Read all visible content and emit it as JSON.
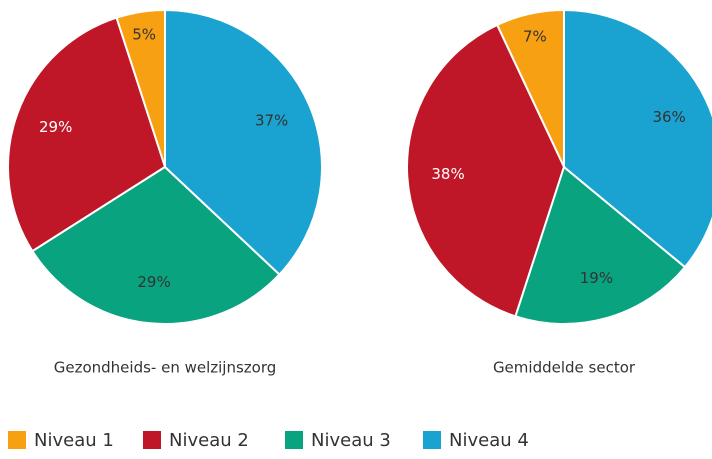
{
  "chart_data": [
    {
      "type": "pie",
      "title": "Gezondheids- en welzijnszorg",
      "categories": [
        "Niveau 1",
        "Niveau 2",
        "Niveau 3",
        "Niveau 4"
      ],
      "values": [
        5,
        29,
        29,
        37
      ],
      "value_labels": [
        "5%",
        "29%",
        "29%",
        "37%"
      ],
      "colors": [
        "#f7a012",
        "#bf1727",
        "#0aa37f",
        "#1aa3d1"
      ],
      "legend": "bottom"
    },
    {
      "type": "pie",
      "title": "Gemiddelde sector",
      "categories": [
        "Niveau 1",
        "Niveau 2",
        "Niveau 3",
        "Niveau 4"
      ],
      "values": [
        7,
        38,
        19,
        36
      ],
      "value_labels": [
        "7%",
        "38%",
        "19%",
        "36%"
      ],
      "colors": [
        "#f7a012",
        "#bf1727",
        "#0aa37f",
        "#1aa3d1"
      ],
      "legend": "bottom"
    }
  ]
}
